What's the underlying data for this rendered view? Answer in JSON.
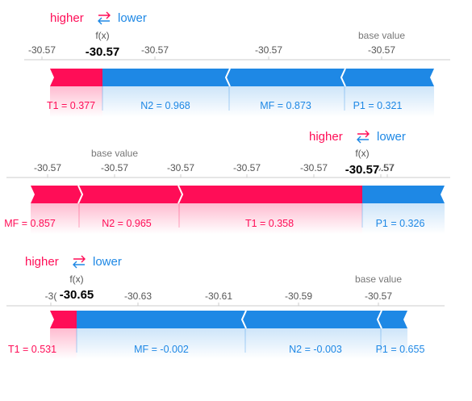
{
  "legend": {
    "higher_label": "higher",
    "lower_label": "lower",
    "arrows_glyph": "⇄"
  },
  "labels": {
    "fx_label": "f(x)",
    "base_value_label": "base value"
  },
  "colors": {
    "positive": "#ff0d57",
    "negative": "#1e88e5",
    "axis": "#cccccc",
    "tick_text": "#555555",
    "fx_value": "#000000"
  },
  "chart_data": [
    {
      "type": "force",
      "ticks": [
        "-30.57",
        "-30.57",
        "-30.57",
        "-30.57"
      ],
      "fx_value": "-30.57",
      "base_label": "base value",
      "segments": [
        {
          "color": "positive",
          "label": "T1 = 0.377"
        },
        {
          "color": "negative",
          "label": "N2 = 0.968"
        },
        {
          "color": "negative",
          "label": "MF = 0.873"
        },
        {
          "color": "negative",
          "label": "P1 = 0.321"
        }
      ]
    },
    {
      "type": "force",
      "ticks": [
        "-30.57",
        "-30.57",
        "-30.57",
        "-30.57",
        "-30.57",
        "-30.57",
        ".57"
      ],
      "fx_value": "-30.57",
      "base_label": "base value",
      "segments": [
        {
          "color": "positive",
          "label": "MF = 0.857"
        },
        {
          "color": "positive",
          "label": "N2 = 0.965"
        },
        {
          "color": "positive",
          "label": "T1 = 0.358"
        },
        {
          "color": "negative",
          "label": "P1 = 0.326"
        }
      ]
    },
    {
      "type": "force",
      "ticks": [
        "-3(",
        "-30.63",
        "-30.61",
        "-30.59",
        "-30.57"
      ],
      "fx_value": "-30.65",
      "base_label": "base value",
      "segments": [
        {
          "color": "positive",
          "label": "T1 = 0.531"
        },
        {
          "color": "negative",
          "label": "MF = -0.002"
        },
        {
          "color": "negative",
          "label": "N2 = -0.003"
        },
        {
          "color": "negative",
          "label": "P1 = 0.655"
        }
      ]
    }
  ]
}
